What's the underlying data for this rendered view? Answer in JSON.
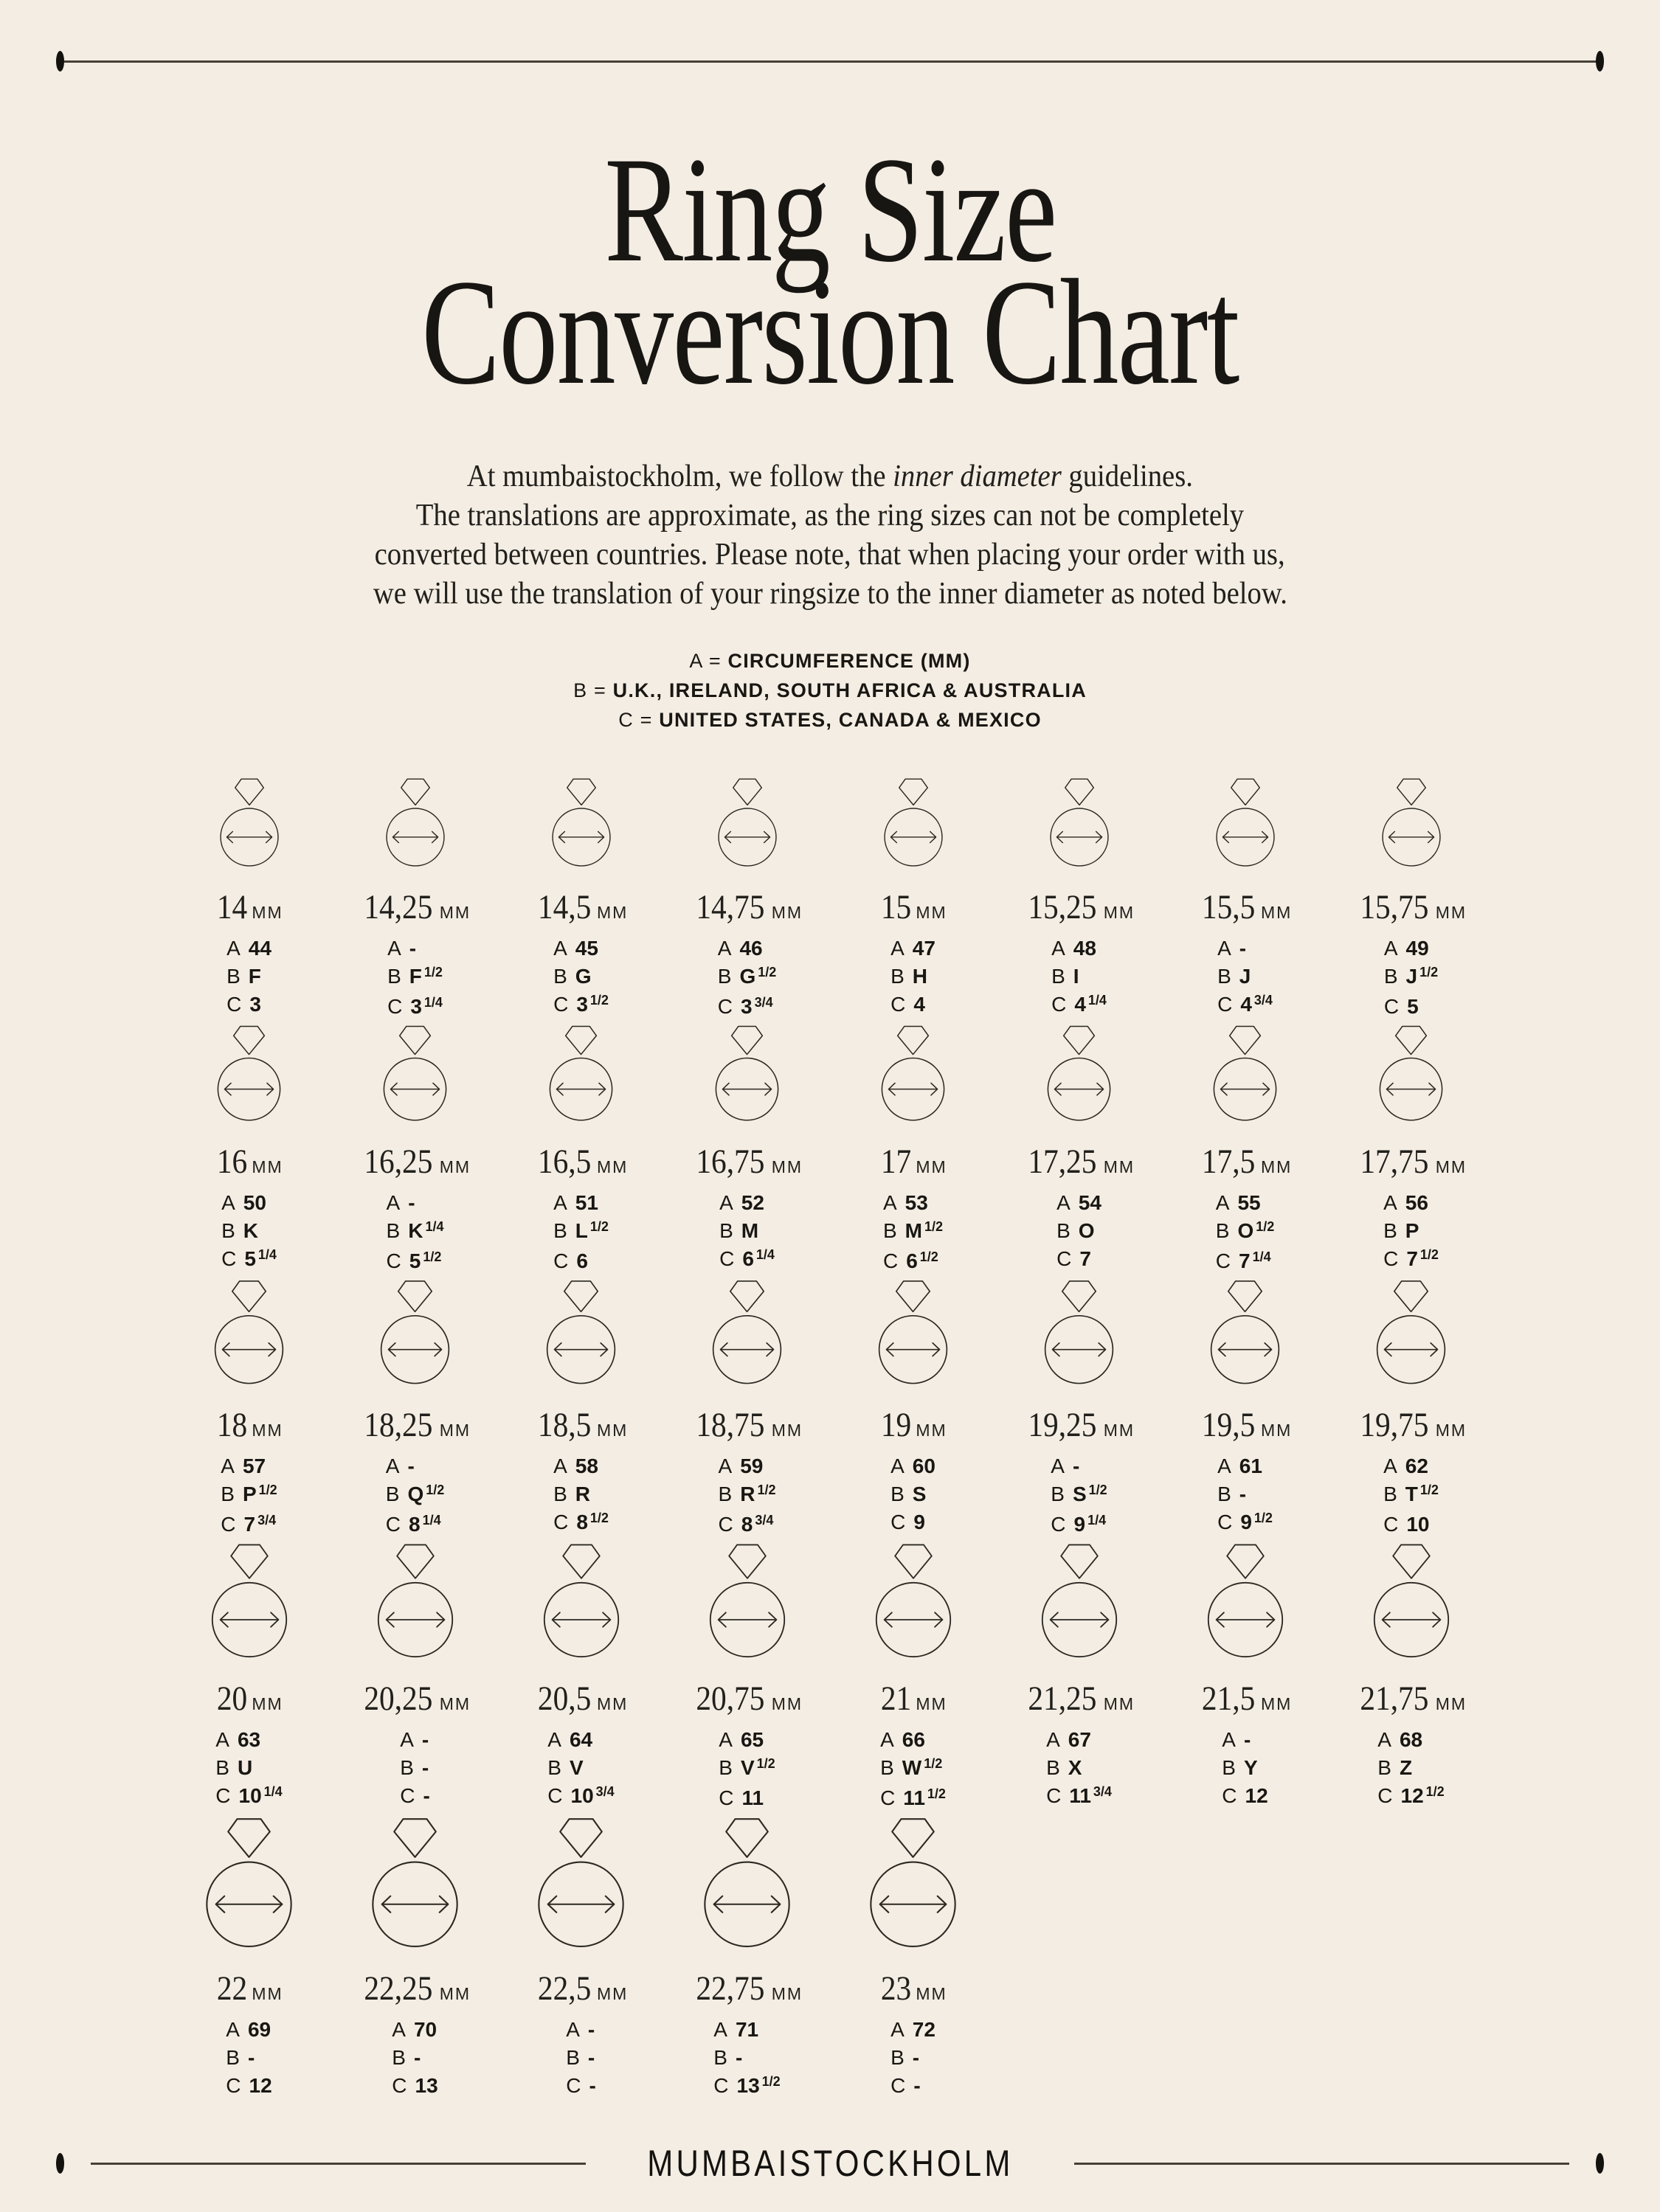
{
  "page": {
    "background": "#f4ede3",
    "ink": "#1c1a17"
  },
  "header": {
    "title_line1": "Ring Size",
    "title_line2": "Conversion Chart"
  },
  "intro": {
    "l1_pre": "At mumbaistockholm, we follow the ",
    "l1_em": "inner diameter",
    "l1_post": " guidelines.",
    "l2": "The translations are approximate, as the ring sizes can not be completely",
    "l3": "converted between countries. Please note, that when placing your order with us,",
    "l4": "we will use the translation of your ringsize to the inner diameter as noted below."
  },
  "legend": [
    {
      "key": "A = ",
      "label": "CIRCUMFERENCE (MM)"
    },
    {
      "key": "B = ",
      "label": "U.K., IRELAND, SOUTH AFRICA & AUSTRALIA"
    },
    {
      "key": "C = ",
      "label": "UNITED STATES, CANADA & MEXICO"
    }
  ],
  "unit": "MM",
  "keys": [
    "A",
    "B",
    "C"
  ],
  "rings": [
    {
      "s": "14",
      "a": "44",
      "af": "",
      "b": "F",
      "bf": "",
      "c": "3",
      "cf": ""
    },
    {
      "s": "14,25",
      "a": "-",
      "af": "",
      "b": "F",
      "bf": "1/2",
      "c": "3",
      "cf": "1/4"
    },
    {
      "s": "14,5",
      "a": "45",
      "af": "",
      "b": "G",
      "bf": "",
      "c": "3",
      "cf": "1/2"
    },
    {
      "s": "14,75",
      "a": "46",
      "af": "",
      "b": "G",
      "bf": "1/2",
      "c": "3",
      "cf": "3/4"
    },
    {
      "s": "15",
      "a": "47",
      "af": "",
      "b": "H",
      "bf": "",
      "c": "4",
      "cf": ""
    },
    {
      "s": "15,25",
      "a": "48",
      "af": "",
      "b": "I",
      "bf": "",
      "c": "4",
      "cf": "1/4"
    },
    {
      "s": "15,5",
      "a": "-",
      "af": "",
      "b": "J",
      "bf": "",
      "c": "4",
      "cf": "3/4"
    },
    {
      "s": "15,75",
      "a": "49",
      "af": "",
      "b": "J",
      "bf": "1/2",
      "c": "5",
      "cf": ""
    },
    {
      "s": "16",
      "a": "50",
      "af": "",
      "b": "K",
      "bf": "",
      "c": "5",
      "cf": "1/4"
    },
    {
      "s": "16,25",
      "a": "-",
      "af": "",
      "b": "K",
      "bf": "1/4",
      "c": "5",
      "cf": "1/2"
    },
    {
      "s": "16,5",
      "a": "51",
      "af": "",
      "b": "L",
      "bf": "1/2",
      "c": "6",
      "cf": ""
    },
    {
      "s": "16,75",
      "a": "52",
      "af": "",
      "b": "M",
      "bf": "",
      "c": "6",
      "cf": "1/4"
    },
    {
      "s": "17",
      "a": "53",
      "af": "",
      "b": "M",
      "bf": "1/2",
      "c": "6",
      "cf": "1/2"
    },
    {
      "s": "17,25",
      "a": "54",
      "af": "",
      "b": "O",
      "bf": "",
      "c": "7",
      "cf": ""
    },
    {
      "s": "17,5",
      "a": "55",
      "af": "",
      "b": "O",
      "bf": "1/2",
      "c": "7",
      "cf": "1/4"
    },
    {
      "s": "17,75",
      "a": "56",
      "af": "",
      "b": "P",
      "bf": "",
      "c": "7",
      "cf": "1/2"
    },
    {
      "s": "18",
      "a": "57",
      "af": "",
      "b": "P",
      "bf": "1/2",
      "c": "7",
      "cf": "3/4"
    },
    {
      "s": "18,25",
      "a": "-",
      "af": "",
      "b": "Q",
      "bf": "1/2",
      "c": "8",
      "cf": "1/4"
    },
    {
      "s": "18,5",
      "a": "58",
      "af": "",
      "b": "R",
      "bf": "",
      "c": "8",
      "cf": "1/2"
    },
    {
      "s": "18,75",
      "a": "59",
      "af": "",
      "b": "R",
      "bf": "1/2",
      "c": "8",
      "cf": "3/4"
    },
    {
      "s": "19",
      "a": "60",
      "af": "",
      "b": "S",
      "bf": "",
      "c": "9",
      "cf": ""
    },
    {
      "s": "19,25",
      "a": "-",
      "af": "",
      "b": "S",
      "bf": "1/2",
      "c": "9",
      "cf": "1/4"
    },
    {
      "s": "19,5",
      "a": "61",
      "af": "",
      "b": "-",
      "bf": "",
      "c": "9",
      "cf": "1/2"
    },
    {
      "s": "19,75",
      "a": "62",
      "af": "",
      "b": "T",
      "bf": "1/2",
      "c": "10",
      "cf": ""
    },
    {
      "s": "20",
      "a": "63",
      "af": "",
      "b": "U",
      "bf": "",
      "c": "10",
      "cf": "1/4"
    },
    {
      "s": "20,25",
      "a": "-",
      "af": "",
      "b": "-",
      "bf": "",
      "c": "-",
      "cf": ""
    },
    {
      "s": "20,5",
      "a": "64",
      "af": "",
      "b": "V",
      "bf": "",
      "c": "10",
      "cf": "3/4"
    },
    {
      "s": "20,75",
      "a": "65",
      "af": "",
      "b": "V",
      "bf": "1/2",
      "c": "11",
      "cf": ""
    },
    {
      "s": "21",
      "a": "66",
      "af": "",
      "b": "W",
      "bf": "1/2",
      "c": "11",
      "cf": "1/2"
    },
    {
      "s": "21,25",
      "a": "67",
      "af": "",
      "b": "X",
      "bf": "",
      "c": "11",
      "cf": "3/4"
    },
    {
      "s": "21,5",
      "a": "-",
      "af": "",
      "b": "Y",
      "bf": "",
      "c": "12",
      "cf": ""
    },
    {
      "s": "21,75",
      "a": "68",
      "af": "",
      "b": "Z",
      "bf": "",
      "c": "12",
      "cf": "1/2"
    },
    {
      "s": "22",
      "a": "69",
      "af": "",
      "b": "-",
      "bf": "",
      "c": "12",
      "cf": ""
    },
    {
      "s": "22,25",
      "a": "70",
      "af": "",
      "b": "-",
      "bf": "",
      "c": "13",
      "cf": ""
    },
    {
      "s": "22,5",
      "a": "-",
      "af": "",
      "b": "-",
      "bf": "",
      "c": "-",
      "cf": ""
    },
    {
      "s": "22,75",
      "a": "71",
      "af": "",
      "b": "-",
      "bf": "",
      "c": "13",
      "cf": "1/2"
    },
    {
      "s": "23",
      "a": "72",
      "af": "",
      "b": "-",
      "bf": "",
      "c": "-",
      "cf": ""
    }
  ],
  "footer": {
    "brand": "MUMBAISTOCKHOLM"
  }
}
